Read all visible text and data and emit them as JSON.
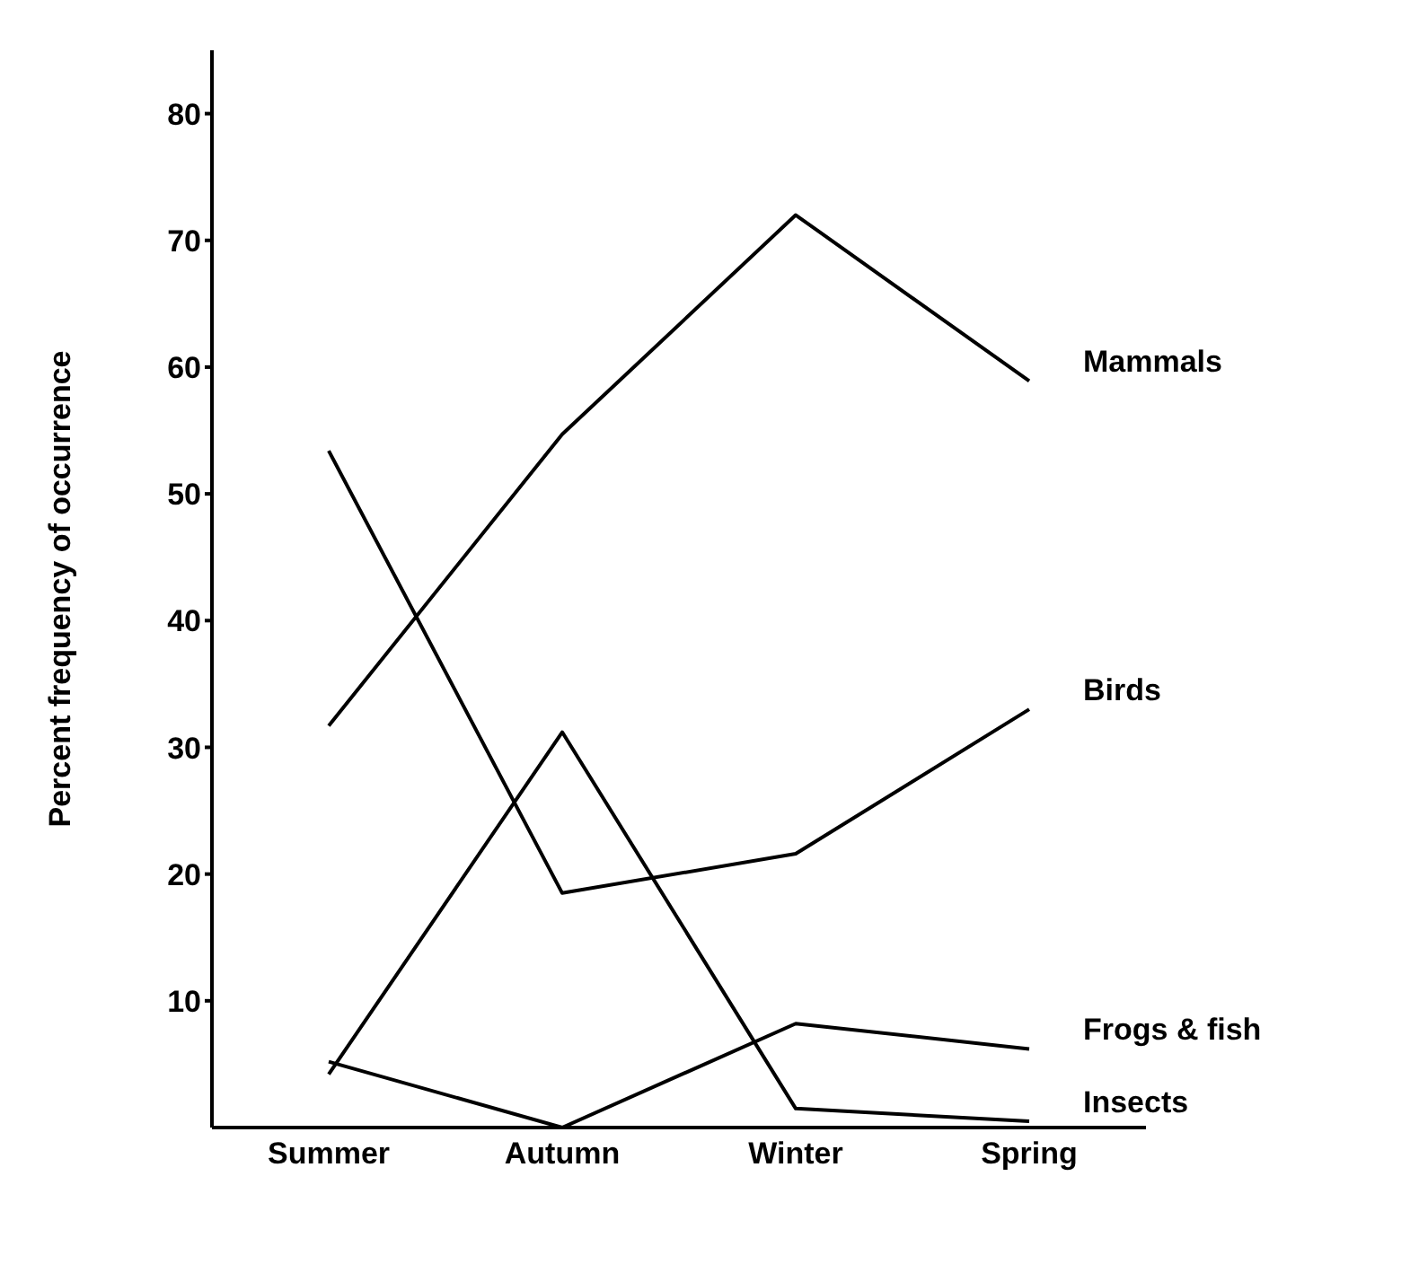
{
  "chart_data": {
    "type": "line",
    "ylabel": "Percent frequency of occurrence",
    "categories": [
      "Summer",
      "Autumn",
      "Winter",
      "Spring"
    ],
    "series": [
      {
        "name": "Mammals",
        "color": "#000000",
        "values": [
          31.7,
          54.7,
          72,
          58.9
        ]
      },
      {
        "name": "Birds",
        "color": "#000000",
        "values": [
          53.4,
          18.5,
          21.6,
          33
        ]
      },
      {
        "name": "Frogs & fish",
        "color": "#000000",
        "values": [
          5.2,
          0,
          8.2,
          6.2
        ]
      },
      {
        "name": "Insects",
        "color": "#000000",
        "values": [
          4.2,
          31.2,
          1.5,
          0.5
        ]
      }
    ],
    "ylim": [
      0,
      85
    ],
    "yticks": [
      10,
      20,
      30,
      40,
      50,
      60,
      70,
      80
    ],
    "grid": false,
    "legend": false,
    "marker": "none",
    "line_style": "solid"
  }
}
